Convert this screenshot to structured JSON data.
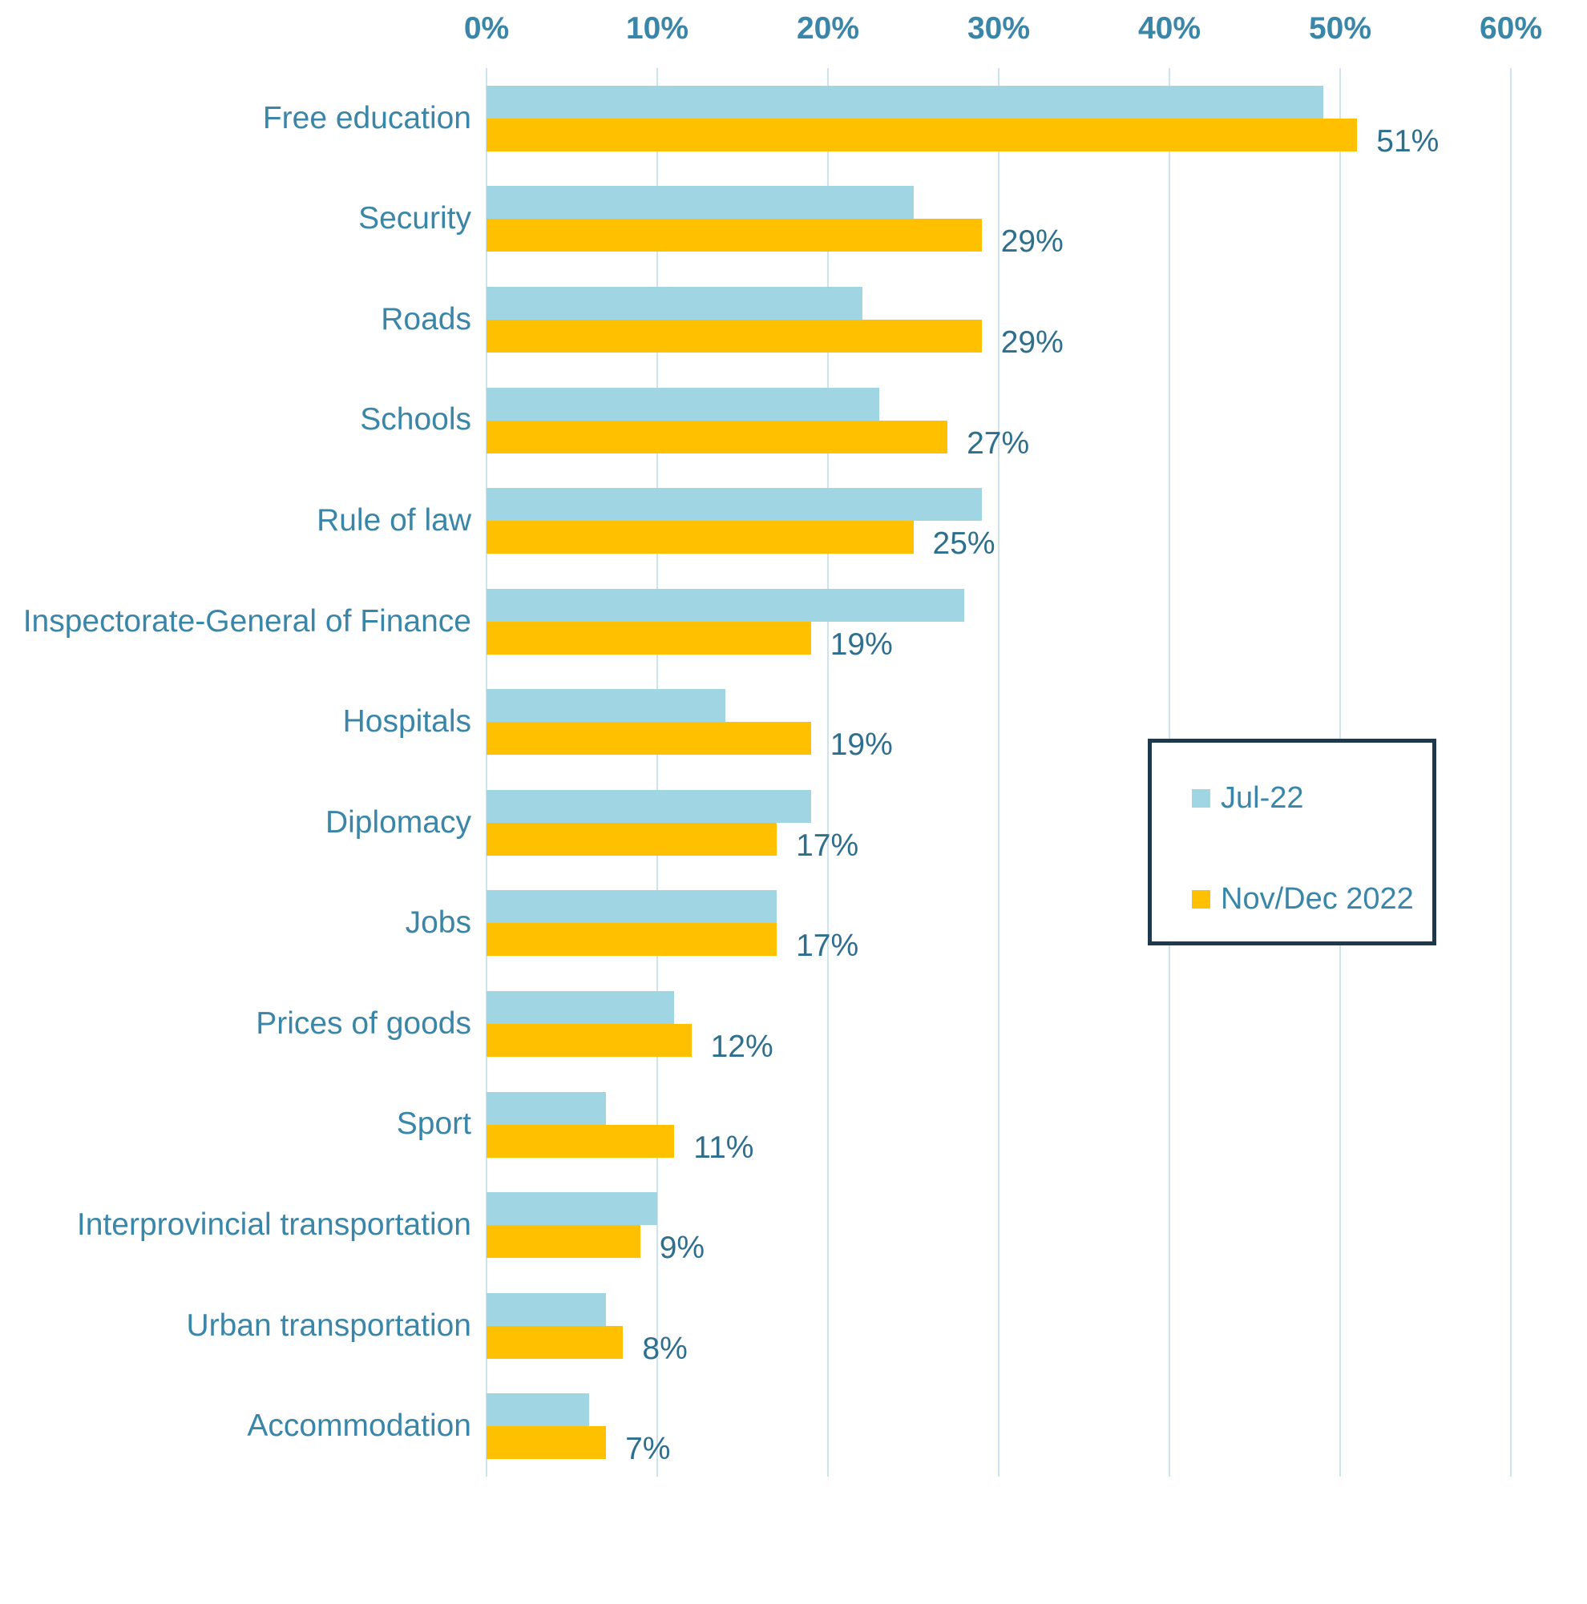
{
  "chart_data": {
    "type": "bar",
    "orientation": "horizontal",
    "title": "",
    "xlabel": "",
    "ylabel": "",
    "x_axis": {
      "position": "top",
      "min": 0,
      "max": 60,
      "ticks": [
        "0%",
        "10%",
        "20%",
        "30%",
        "40%",
        "50%",
        "60%"
      ],
      "grid": true
    },
    "categories": [
      "Free education",
      "Security",
      "Roads",
      "Schools",
      "Rule of law",
      "Inspectorate-General of Finance",
      "Hospitals",
      "Diplomacy",
      "Jobs",
      "Prices of goods",
      "Sport",
      "Interprovincial transportation",
      "Urban transportation",
      "Accommodation"
    ],
    "series": [
      {
        "name": "Jul-22",
        "color": "#a0d6e4",
        "values": [
          49,
          25,
          22,
          23,
          29,
          28,
          14,
          19,
          17,
          11,
          7,
          10,
          7,
          6
        ],
        "data_labels_shown": false
      },
      {
        "name": "Nov/Dec 2022",
        "color": "#ffc000",
        "values": [
          51,
          29,
          29,
          27,
          25,
          19,
          19,
          17,
          17,
          12,
          11,
          9,
          8,
          7
        ],
        "data_labels_shown": true,
        "data_labels": [
          "51%",
          "29%",
          "29%",
          "27%",
          "25%",
          "19%",
          "19%",
          "17%",
          "17%",
          "12%",
          "11%",
          "9%",
          "8%",
          "7%"
        ]
      }
    ],
    "legend": {
      "position": "center-right",
      "entries": [
        "Jul-22",
        "Nov/Dec 2022"
      ]
    }
  },
  "colors": {
    "series_jul22": "#a0d6e4",
    "series_novdec": "#ffc000",
    "axis_text": "#3a86a8",
    "category_text": "#3a86a8",
    "value_label_text": "#2e6f8e",
    "gridline": "#cfe3ed",
    "legend_border": "#1d394b",
    "background": "#ffffff"
  }
}
